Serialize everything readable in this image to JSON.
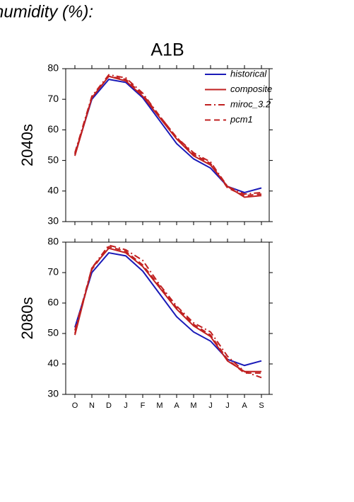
{
  "header": {
    "text": "humidity (%):",
    "title": "A1B"
  },
  "chart_data": [
    {
      "type": "line",
      "ylabel": "2040s",
      "ylim": [
        30,
        80
      ],
      "yticks": [
        30,
        40,
        50,
        60,
        70,
        80
      ],
      "series": [
        {
          "name": "historical",
          "color": "#1a1ab8",
          "style": "solid",
          "values": [
            52,
            70,
            76.5,
            75.5,
            70.5,
            63,
            55.5,
            50.5,
            47.5,
            41.5,
            39.5,
            41
          ]
        },
        {
          "name": "composite",
          "color": "#c02020",
          "style": "solid",
          "values": [
            51.5,
            70.5,
            77.5,
            76,
            71,
            64,
            57,
            51.5,
            48.5,
            41.5,
            38,
            38.5
          ]
        },
        {
          "name": "miroc_3.2",
          "color": "#c02020",
          "style": "dash-dot",
          "values": [
            52.5,
            71,
            78,
            77,
            72,
            64.5,
            57.5,
            52.5,
            49.5,
            41.5,
            39,
            39.5
          ]
        },
        {
          "name": "pcm1",
          "color": "#c02020",
          "style": "dash",
          "values": [
            52,
            70.5,
            77.5,
            76.5,
            71.5,
            64.5,
            57.5,
            52,
            49,
            41,
            38.5,
            39
          ]
        }
      ]
    },
    {
      "type": "line",
      "ylabel": "2080s",
      "ylim": [
        30,
        80
      ],
      "yticks": [
        30,
        40,
        50,
        60,
        70,
        80
      ],
      "categories": [
        "O",
        "N",
        "D",
        "J",
        "F",
        "M",
        "A",
        "M",
        "J",
        "J",
        "A",
        "S"
      ],
      "series": [
        {
          "color": "#1a1ab8",
          "style": "solid",
          "values": [
            52,
            70,
            76.5,
            75.5,
            70.5,
            63,
            55.5,
            50.5,
            47.5,
            41.5,
            39.5,
            41
          ]
        },
        {
          "color": "#c02020",
          "style": "solid",
          "values": [
            49.5,
            71.5,
            78,
            76.5,
            72,
            65,
            58,
            52.5,
            49,
            41,
            37.5,
            37.5
          ]
        },
        {
          "color": "#c02020",
          "style": "dash-dot",
          "values": [
            51,
            71.5,
            79,
            77.5,
            74,
            66,
            59,
            53.5,
            50.5,
            42.5,
            37.5,
            35.5
          ]
        },
        {
          "color": "#c02020",
          "style": "dash",
          "values": [
            50,
            71,
            78.5,
            77,
            72.5,
            65.5,
            58.5,
            53,
            49.5,
            41.5,
            37,
            37
          ]
        }
      ]
    }
  ]
}
